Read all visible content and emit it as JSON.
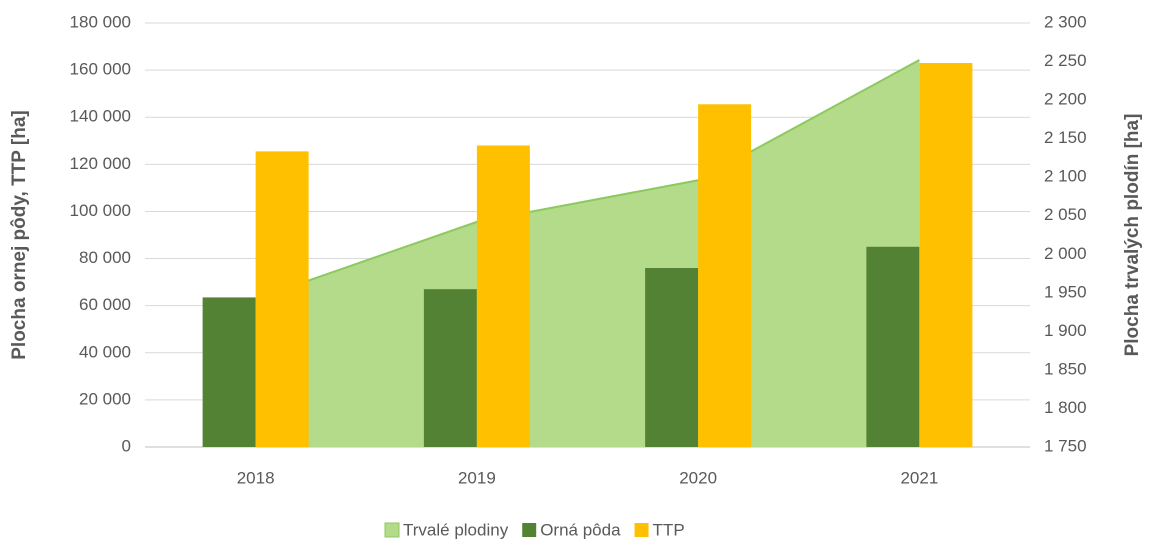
{
  "chart_data": {
    "type": "bar",
    "categories": [
      "2018",
      "2019",
      "2020",
      "2021"
    ],
    "y_label": "Plocha ornej pôdy, TTP [ha]",
    "y2_label": "Plocha trvalých plodín [ha]",
    "series": [
      {
        "name": "Trvalé plodiny",
        "type": "area",
        "axis": "y2",
        "color": "#b3db8a",
        "line_color": "#8cc95e",
        "values": [
          1942,
          2042,
          2096,
          2252
        ]
      },
      {
        "name": "Orná pôda",
        "type": "bar",
        "color": "#548235",
        "values": [
          63500,
          67000,
          76000,
          85000
        ]
      },
      {
        "name": "TTP",
        "type": "bar",
        "color": "#ffc000",
        "values": [
          125500,
          128000,
          145500,
          163000
        ]
      }
    ],
    "ylim": [
      0,
      180000
    ],
    "yticks": [
      0,
      {
        "value": 20000,
        "label": "20 000"
      },
      {
        "value": 40000,
        "label": "40 000"
      },
      {
        "value": 60000,
        "label": "60 000"
      },
      {
        "value": 80000,
        "label": "80 000"
      },
      {
        "value": 100000,
        "label": "100 000"
      },
      {
        "value": 120000,
        "label": "120 000"
      },
      {
        "value": 140000,
        "label": "140 000"
      },
      {
        "value": 160000,
        "label": "160 000"
      },
      {
        "value": 180000,
        "label": "180 000"
      }
    ],
    "y2lim": [
      1750,
      2300
    ],
    "y2ticks": [
      {
        "value": 1750,
        "label": "1 750"
      },
      {
        "value": 1800,
        "label": "1 800"
      },
      {
        "value": 1850,
        "label": "1 850"
      },
      {
        "value": 1900,
        "label": "1 900"
      },
      {
        "value": 1950,
        "label": "1 950"
      },
      {
        "value": 2000,
        "label": "2 000"
      },
      {
        "value": 2050,
        "label": "2 050"
      },
      {
        "value": 2100,
        "label": "2 100"
      },
      {
        "value": 2150,
        "label": "2 150"
      },
      {
        "value": 2200,
        "label": "2 200"
      },
      {
        "value": 2250,
        "label": "2 250"
      },
      {
        "value": 2300,
        "label": "2 300"
      }
    ],
    "grid": true,
    "legend": "bottom"
  }
}
